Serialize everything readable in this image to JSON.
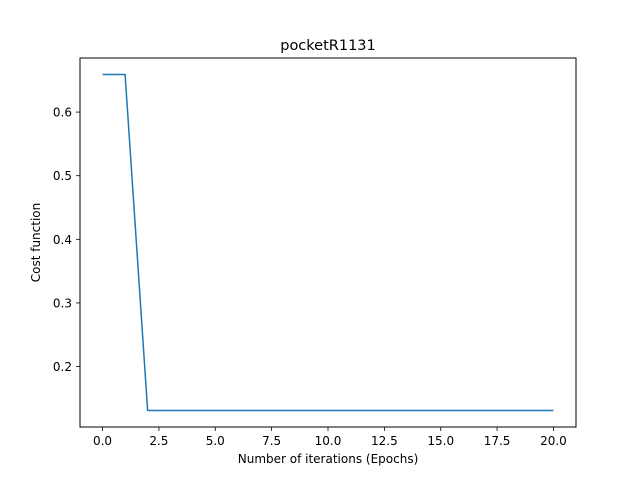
{
  "chart_data": {
    "type": "line",
    "title": "pocketR1131",
    "xlabel": "Number of iterations (Epochs)",
    "ylabel": "Cost function",
    "xlim": [
      -1.0,
      21.0
    ],
    "ylim": [
      0.105,
      0.685
    ],
    "x_ticks": [
      0.0,
      2.5,
      5.0,
      7.5,
      10.0,
      12.5,
      15.0,
      17.5,
      20.0
    ],
    "x_tick_labels": [
      "0.0",
      "2.5",
      "5.0",
      "7.5",
      "10.0",
      "12.5",
      "15.0",
      "17.5",
      "20.0"
    ],
    "y_ticks": [
      0.2,
      0.3,
      0.4,
      0.5,
      0.6
    ],
    "y_tick_labels": [
      "0.2",
      "0.3",
      "0.4",
      "0.5",
      "0.6"
    ],
    "grid": false,
    "series": [
      {
        "color": "#1f77b4",
        "x": [
          0,
          1,
          2,
          3,
          4,
          5,
          6,
          7,
          8,
          9,
          10,
          11,
          12,
          13,
          14,
          15,
          16,
          17,
          18,
          19,
          20
        ],
        "y": [
          0.659,
          0.659,
          0.131,
          0.131,
          0.131,
          0.131,
          0.131,
          0.131,
          0.131,
          0.131,
          0.131,
          0.131,
          0.131,
          0.131,
          0.131,
          0.131,
          0.131,
          0.131,
          0.131,
          0.131,
          0.131
        ]
      }
    ]
  }
}
